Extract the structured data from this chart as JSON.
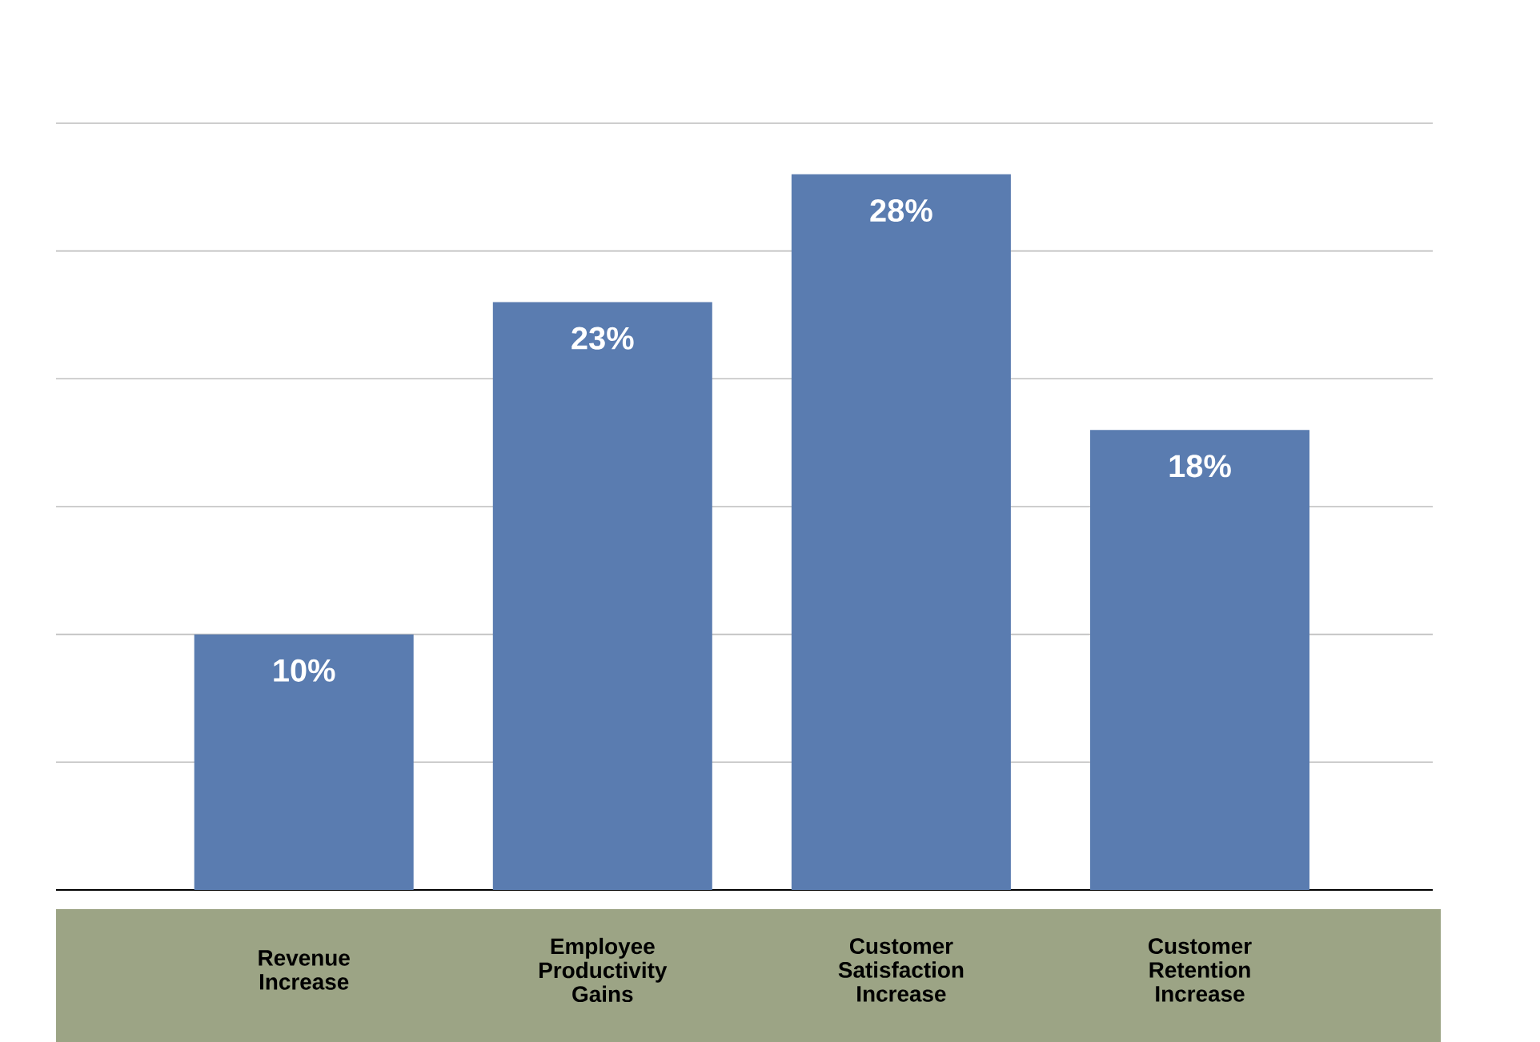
{
  "chart_data": {
    "type": "bar",
    "categories": [
      "Revenue Increase",
      "Employee Productivity Gains",
      "Customer Satisfaction Increase",
      "Customer Retention Increase"
    ],
    "values": [
      10,
      23,
      28,
      18
    ],
    "value_labels": [
      "10%",
      "23%",
      "28%",
      "18%"
    ],
    "color": "#5a7cb0",
    "ylim": [
      0,
      30
    ],
    "yticks": [
      {
        "value": 0,
        "label": null
      },
      {
        "value": 5,
        "label": null
      },
      {
        "value": 10,
        "label": null
      },
      {
        "value": 15,
        "label": null
      },
      {
        "value": 20,
        "label": null
      },
      {
        "value": 25,
        "label": null
      },
      {
        "value": 30,
        "label": null
      }
    ],
    "grid": "y",
    "tick_labels": "x"
  }
}
